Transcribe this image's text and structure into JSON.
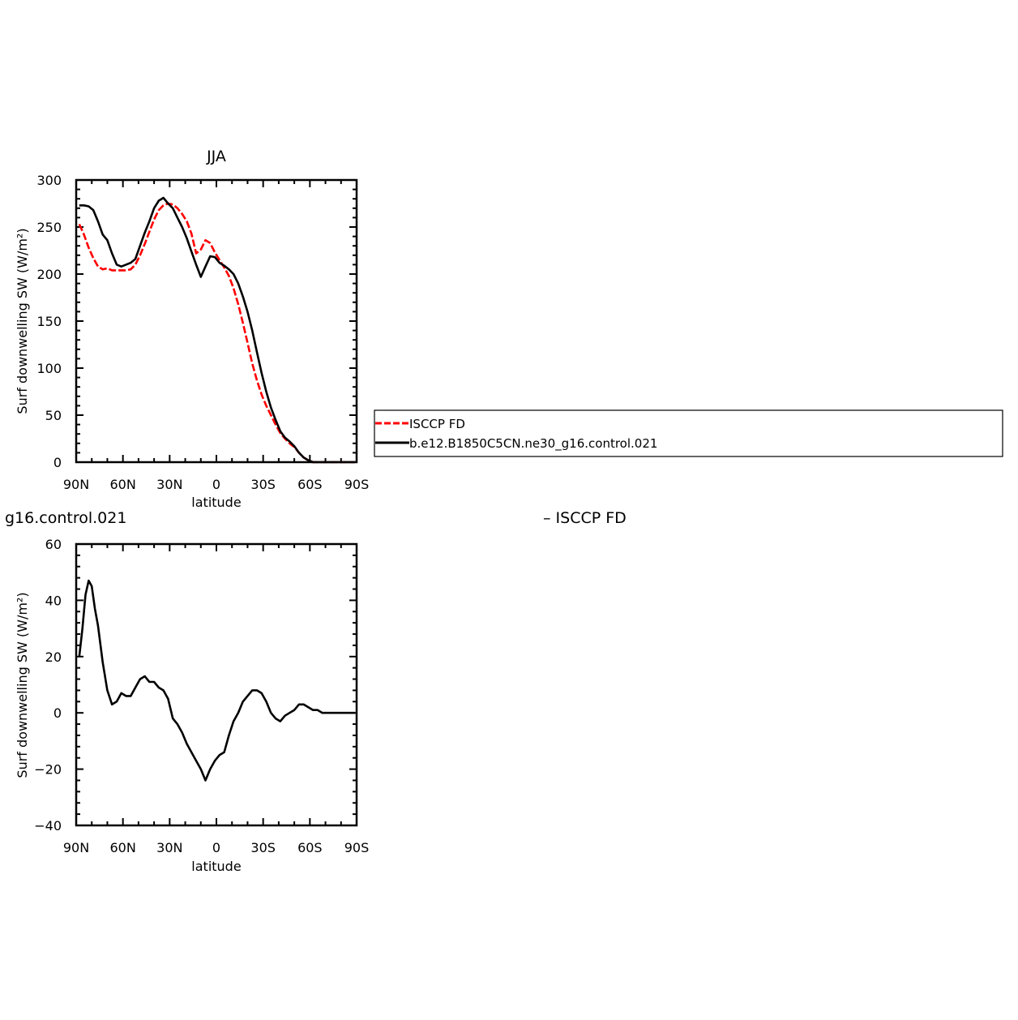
{
  "colors": {
    "obs": "#ff0000",
    "model": "#000000",
    "axis": "#000000"
  },
  "legend": {
    "entries": [
      {
        "label": "ISCCP FD",
        "color": "#ff0000",
        "dash": true
      },
      {
        "label": "b.e12.B1850C5CN.ne30_g16.control.021",
        "color": "#000000",
        "dash": false
      }
    ]
  },
  "bottom_panel": {
    "left_title": "g16.control.021",
    "right_title": "– ISCCP FD"
  },
  "chart_data": [
    {
      "type": "line",
      "title": "JJA",
      "xlabel": "latitude",
      "ylabel": "Surf downwelling SW (W/m²)",
      "xlim": [
        90,
        -90
      ],
      "ylim": [
        0,
        300
      ],
      "xticks": [
        90,
        60,
        30,
        0,
        -30,
        -60,
        -90
      ],
      "xtick_labels": [
        "90N",
        "60N",
        "30N",
        "0",
        "30S",
        "60S",
        "90S"
      ],
      "yticks": [
        0,
        50,
        100,
        150,
        200,
        250,
        300
      ],
      "ytick_labels": [
        "0",
        "50",
        "100",
        "150",
        "200",
        "250",
        "300"
      ],
      "series": [
        {
          "name": "ISCCP FD",
          "color": "#ff0000",
          "dash": true,
          "x": [
            88,
            85,
            82,
            79,
            76,
            73,
            70,
            67,
            64,
            61,
            58,
            55,
            52,
            49,
            46,
            43,
            40,
            37,
            34,
            31,
            28,
            25,
            22,
            19,
            16,
            13,
            10,
            7,
            4,
            1,
            -2,
            -5,
            -8,
            -11,
            -14,
            -17,
            -20,
            -23,
            -26,
            -29,
            -32,
            -35,
            -38,
            -41,
            -44,
            -47,
            -50,
            -53,
            -56,
            -59,
            -62,
            -65,
            -68,
            -71,
            -74,
            -77,
            -80,
            -83,
            -86,
            -89
          ],
          "y": [
            253,
            242,
            228,
            217,
            208,
            205,
            206,
            204,
            204,
            204,
            204,
            205,
            210,
            220,
            232,
            245,
            258,
            268,
            273,
            275,
            274,
            270,
            264,
            256,
            243,
            222,
            226,
            236,
            233,
            223,
            215,
            207,
            198,
            185,
            168,
            148,
            127,
            105,
            87,
            72,
            60,
            50,
            40,
            31,
            25,
            20,
            16,
            10,
            5,
            2,
            0,
            0,
            0,
            0,
            0,
            0,
            0,
            0,
            0,
            0
          ]
        },
        {
          "name": "b.e12.B1850C5CN.ne30_g16.control.021",
          "color": "#000000",
          "dash": false,
          "x": [
            88,
            85,
            82,
            79,
            76,
            73,
            70,
            67,
            64,
            61,
            58,
            55,
            52,
            49,
            46,
            43,
            40,
            37,
            34,
            31,
            28,
            25,
            22,
            19,
            16,
            13,
            10,
            7,
            4,
            1,
            -2,
            -5,
            -8,
            -11,
            -14,
            -17,
            -20,
            -23,
            -26,
            -29,
            -32,
            -35,
            -38,
            -41,
            -44,
            -47,
            -50,
            -53,
            -56,
            -59,
            -62,
            -65,
            -68,
            -71,
            -74,
            -77,
            -80,
            -83,
            -86,
            -89
          ],
          "y": [
            273,
            273,
            272,
            268,
            256,
            242,
            236,
            222,
            210,
            208,
            210,
            212,
            216,
            230,
            244,
            256,
            270,
            278,
            281,
            275,
            270,
            260,
            250,
            238,
            224,
            210,
            197,
            208,
            219,
            218,
            212,
            209,
            205,
            200,
            190,
            176,
            160,
            140,
            117,
            95,
            75,
            58,
            45,
            33,
            26,
            22,
            17,
            10,
            5,
            2,
            0,
            0,
            0,
            0,
            0,
            0,
            0,
            0,
            0,
            0
          ]
        }
      ]
    },
    {
      "type": "line",
      "title": "",
      "xlabel": "latitude",
      "ylabel": "Surf downwelling SW (W/m²)",
      "xlim": [
        90,
        -90
      ],
      "ylim": [
        -40,
        60
      ],
      "xticks": [
        90,
        60,
        30,
        0,
        -30,
        -60,
        -90
      ],
      "xtick_labels": [
        "90N",
        "60N",
        "30N",
        "0",
        "30S",
        "60S",
        "90S"
      ],
      "yticks": [
        -40,
        -20,
        0,
        20,
        40,
        60
      ],
      "ytick_labels": [
        "−40",
        "−20",
        "0",
        "20",
        "40",
        "60"
      ],
      "series": [
        {
          "color": "#000000",
          "dash": false,
          "x": [
            88,
            86,
            84,
            82,
            80,
            78,
            76,
            73,
            70,
            67,
            64,
            61,
            58,
            55,
            52,
            49,
            46,
            43,
            40,
            37,
            34,
            31,
            28,
            25,
            22,
            19,
            16,
            13,
            10,
            7,
            4,
            1,
            -2,
            -5,
            -8,
            -11,
            -14,
            -17,
            -20,
            -23,
            -26,
            -29,
            -32,
            -35,
            -38,
            -41,
            -44,
            -47,
            -50,
            -53,
            -56,
            -59,
            -62,
            -65,
            -68,
            -71,
            -74,
            -77,
            -80,
            -83,
            -86,
            -89
          ],
          "y": [
            20,
            30,
            42,
            47,
            45,
            37,
            31,
            18,
            8,
            3,
            4,
            7,
            6,
            6,
            9,
            12,
            13,
            11,
            11,
            9,
            8,
            5,
            -2,
            -4,
            -7,
            -11,
            -14,
            -17,
            -20,
            -24,
            -20,
            -17,
            -15,
            -14,
            -8,
            -3,
            0,
            4,
            6,
            8,
            8,
            7,
            4,
            0,
            -2,
            -3,
            -1,
            0,
            1,
            3,
            3,
            2,
            1,
            1,
            0,
            0,
            0,
            0,
            0,
            0,
            0,
            0
          ]
        }
      ]
    }
  ]
}
